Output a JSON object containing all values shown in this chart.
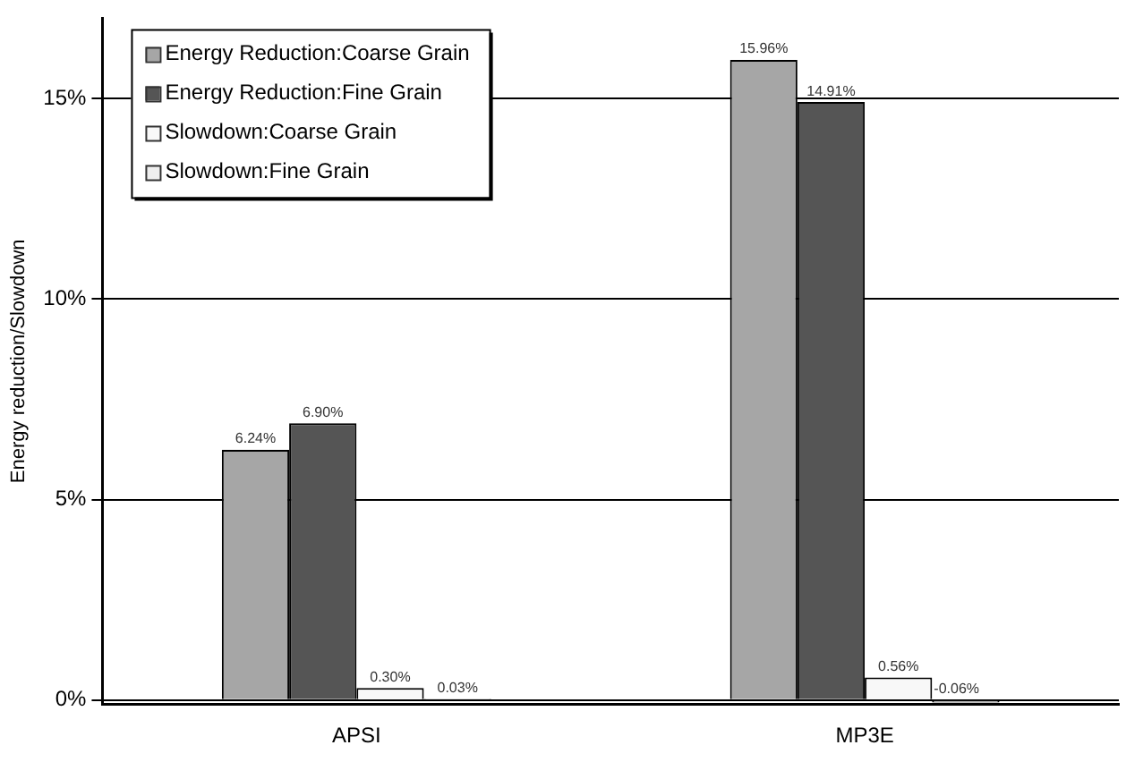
{
  "chart_data": {
    "type": "bar",
    "ylabel": "Energy reduction/Slowdown",
    "categories": [
      "APSI",
      "MP3E"
    ],
    "series": [
      {
        "name": "Energy Reduction:Coarse Grain",
        "color": "#a6a6a6",
        "values": [
          6.24,
          15.96
        ],
        "value_labels": [
          "6.24%",
          "15.96%"
        ]
      },
      {
        "name": "Energy Reduction:Fine Grain",
        "color": "#555555",
        "values": [
          6.9,
          14.91
        ],
        "value_labels": [
          "6.90%",
          "14.91%"
        ]
      },
      {
        "name": "Slowdown:Coarse Grain",
        "color": "#f8f8f8",
        "values": [
          0.3,
          0.56
        ],
        "value_labels": [
          "0.30%",
          "0.56%"
        ]
      },
      {
        "name": "Slowdown:Fine Grain",
        "color": "#eeeeee",
        "values": [
          0.03,
          -0.06
        ],
        "value_labels": [
          "0.03%",
          "-0.06%"
        ]
      }
    ],
    "ylim": [
      -0.1,
      17
    ],
    "yticks": [
      {
        "value": 0,
        "label": "0%"
      },
      {
        "value": 5,
        "label": "5%"
      },
      {
        "value": 10,
        "label": "10%"
      },
      {
        "value": 15,
        "label": "15%"
      }
    ],
    "grid": "y",
    "legend": "top left"
  }
}
